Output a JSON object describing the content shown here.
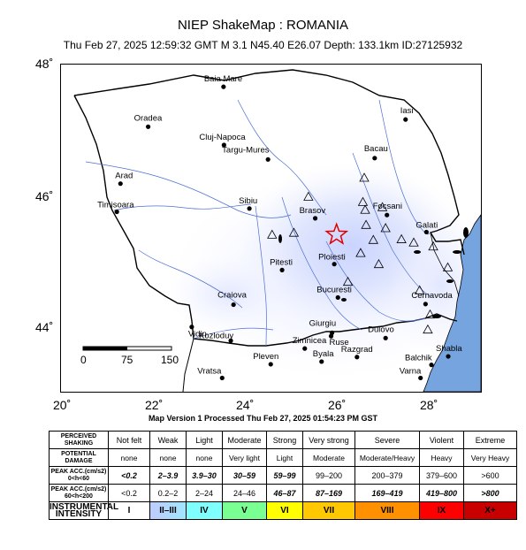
{
  "title": "NIEP ShakeMap : ROMANIA",
  "subtitle": "Thu Feb 27, 2025 12:59:32 GMT   M 3.1    N45.40 E26.07   Depth: 133.1km    ID:27125932",
  "processed": "Map Version 1 Processed Thu Feb 27, 2025 01:54:23 PM GST",
  "map": {
    "lon_range": [
      20,
      29.25
    ],
    "lat_range": [
      43,
      48
    ],
    "lat_ticks": [
      {
        "value": 48,
        "label": "48˚"
      },
      {
        "value": 46,
        "label": "46˚"
      },
      {
        "value": 44,
        "label": "44˚"
      }
    ],
    "lon_ticks": [
      {
        "value": 20,
        "label": "20˚"
      },
      {
        "value": 22,
        "label": "22˚"
      },
      {
        "value": 24,
        "label": "24˚"
      },
      {
        "value": 26,
        "label": "26˚"
      },
      {
        "value": 28,
        "label": "28˚"
      }
    ],
    "epicenter": {
      "lat": 45.4,
      "lon": 26.07
    },
    "scalebar": {
      "labels": [
        "0",
        "75",
        "150"
      ],
      "unit": "km"
    },
    "cities": [
      {
        "name": "Baia Mare",
        "lon": 23.58,
        "lat": 47.66
      },
      {
        "name": "Oradea",
        "lon": 21.92,
        "lat": 47.05
      },
      {
        "name": "Iasi",
        "lon": 27.59,
        "lat": 47.16
      },
      {
        "name": "Cluj-Napoca",
        "lon": 23.59,
        "lat": 46.77
      },
      {
        "name": "Targu-Mures",
        "lon": 24.56,
        "lat": 46.55
      },
      {
        "name": "Bacau",
        "lon": 26.91,
        "lat": 46.57
      },
      {
        "name": "Arad",
        "lon": 21.31,
        "lat": 46.18
      },
      {
        "name": "Timisoara",
        "lon": 21.23,
        "lat": 45.75
      },
      {
        "name": "Sibiu",
        "lon": 24.15,
        "lat": 45.8
      },
      {
        "name": "Brasov",
        "lon": 25.6,
        "lat": 45.65
      },
      {
        "name": "Focsani",
        "lon": 27.18,
        "lat": 45.7
      },
      {
        "name": "Galati",
        "lon": 28.05,
        "lat": 45.44
      },
      {
        "name": "Ploiesti",
        "lon": 26.02,
        "lat": 44.95
      },
      {
        "name": "Pitesti",
        "lon": 24.87,
        "lat": 44.86
      },
      {
        "name": "Bucuresti",
        "lon": 26.1,
        "lat": 44.44
      },
      {
        "name": "Craiova",
        "lon": 23.8,
        "lat": 44.33
      },
      {
        "name": "Cernavoda",
        "lon": 28.03,
        "lat": 44.34
      },
      {
        "name": "Giurgiu",
        "lon": 25.97,
        "lat": 43.9
      },
      {
        "name": "Zimnicea",
        "lon": 25.37,
        "lat": 43.66
      },
      {
        "name": "Ruse",
        "lon": 25.95,
        "lat": 43.85
      },
      {
        "name": "Dulovo",
        "lon": 27.15,
        "lat": 43.82
      },
      {
        "name": "Kozloduy",
        "lon": 23.74,
        "lat": 43.78
      },
      {
        "name": "Vidin",
        "lon": 22.88,
        "lat": 43.99
      },
      {
        "name": "Pleven",
        "lon": 24.62,
        "lat": 43.42
      },
      {
        "name": "Byala",
        "lon": 25.74,
        "lat": 43.46
      },
      {
        "name": "Razgrad",
        "lon": 26.52,
        "lat": 43.53
      },
      {
        "name": "Shabla",
        "lon": 28.53,
        "lat": 43.54
      },
      {
        "name": "Balchik",
        "lon": 28.16,
        "lat": 43.41
      },
      {
        "name": "Vratsa",
        "lon": 23.55,
        "lat": 43.21
      },
      {
        "name": "Varna",
        "lon": 27.92,
        "lat": 43.21
      }
    ],
    "stations": [
      {
        "lon": 26.68,
        "lat": 46.27
      },
      {
        "lon": 25.45,
        "lat": 45.98
      },
      {
        "lon": 26.65,
        "lat": 45.9
      },
      {
        "lon": 26.7,
        "lat": 45.78
      },
      {
        "lon": 27.08,
        "lat": 45.82
      },
      {
        "lon": 26.72,
        "lat": 45.55
      },
      {
        "lon": 27.15,
        "lat": 45.5
      },
      {
        "lon": 25.13,
        "lat": 45.43
      },
      {
        "lon": 24.65,
        "lat": 45.4
      },
      {
        "lon": 26.88,
        "lat": 45.32
      },
      {
        "lon": 27.5,
        "lat": 45.33
      },
      {
        "lon": 27.77,
        "lat": 45.28
      },
      {
        "lon": 28.2,
        "lat": 45.22
      },
      {
        "lon": 26.6,
        "lat": 45.12
      },
      {
        "lon": 27.0,
        "lat": 44.95
      },
      {
        "lon": 28.52,
        "lat": 44.9
      },
      {
        "lon": 26.32,
        "lat": 44.68
      },
      {
        "lon": 27.9,
        "lat": 44.55
      },
      {
        "lon": 28.13,
        "lat": 44.18
      },
      {
        "lon": 28.08,
        "lat": 43.95
      }
    ]
  },
  "legend": {
    "rows": [
      {
        "header": [
          "PERCEIVED",
          "SHAKING"
        ],
        "cells": [
          "Not felt",
          "Weak",
          "Light",
          "Moderate",
          "Strong",
          "Very strong",
          "Severe",
          "Violent",
          "Extreme"
        ],
        "style": "normal"
      },
      {
        "header": [
          "POTENTIAL",
          "DAMAGE"
        ],
        "cells": [
          "none",
          "none",
          "none",
          "Very light",
          "Light",
          "Moderate",
          "Moderate/Heavy",
          "Heavy",
          "Very Heavy"
        ],
        "style": "small"
      },
      {
        "header": [
          "PEAK ACC.(cm/s2)",
          "0<h<60"
        ],
        "cells": [
          "<0.2",
          "2–3.9",
          "3.9–30",
          "30–59",
          "59–99",
          "99–200",
          "200–379",
          "379–600",
          ">600"
        ],
        "bold": [
          true,
          true,
          true,
          true,
          true,
          false,
          false,
          false,
          false
        ]
      },
      {
        "header": [
          "PEAK ACC.(cm/s2)",
          "60<h<200"
        ],
        "cells": [
          "<0.2",
          "0.2–2",
          "2–24",
          "24–46",
          "46–87",
          "87–169",
          "169–419",
          "419–800",
          ">800"
        ],
        "bold": [
          false,
          false,
          false,
          false,
          true,
          true,
          true,
          true,
          true
        ]
      },
      {
        "header": [
          "INSTRUMENTAL",
          "INTENSITY"
        ],
        "cells": [
          "I",
          "II–III",
          "IV",
          "V",
          "VI",
          "VII",
          "VIII",
          "IX",
          "X+"
        ],
        "style": "intensity"
      }
    ],
    "intensity_colors": [
      "#ffffff",
      "#bfccff",
      "#a0e6ff",
      "#80ffff",
      "#7aff93",
      "#ffff00",
      "#ffc800",
      "#ff9100",
      "#ff0000",
      "#c80000"
    ]
  }
}
